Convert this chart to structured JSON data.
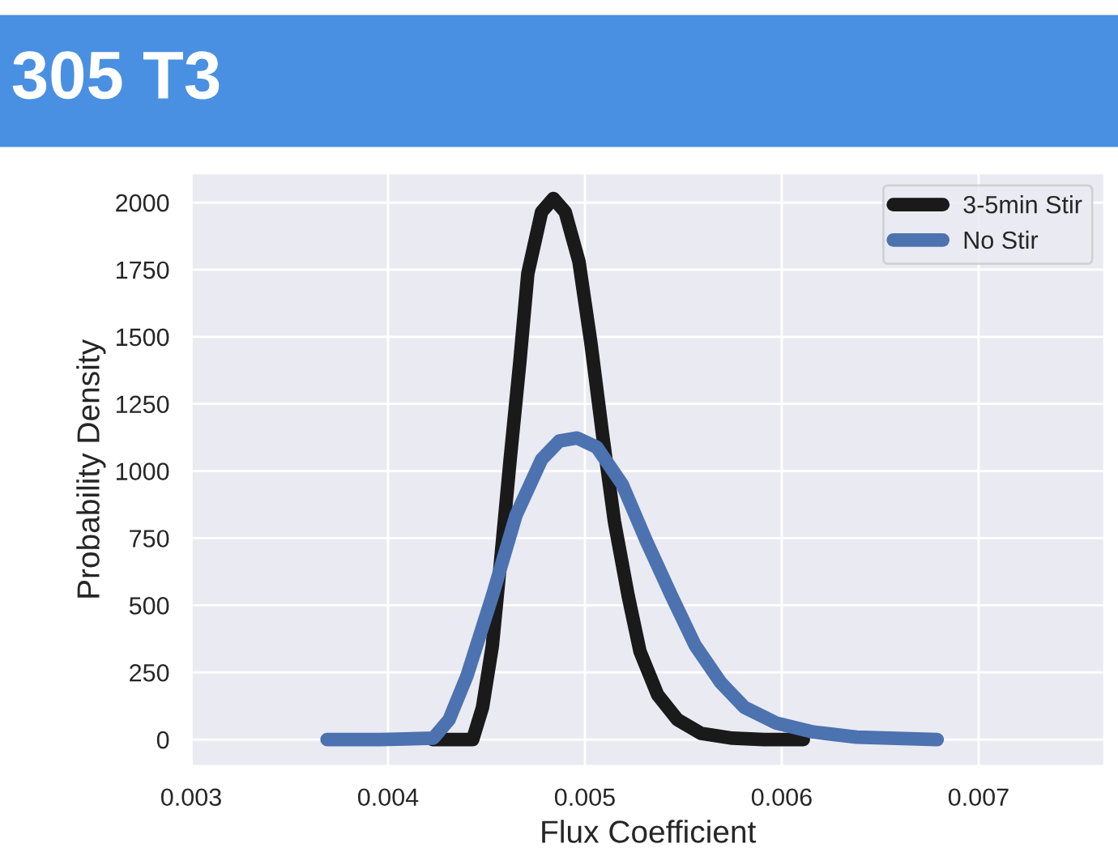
{
  "chart_data": {
    "type": "line",
    "title": "305 T3",
    "xlabel": "Flux Coefficient",
    "ylabel": "Probability Density",
    "xlim": [
      0.003,
      0.00764
    ],
    "ylim": [
      -100,
      2110
    ],
    "xticks": [
      0.003,
      0.004,
      0.005,
      0.006,
      0.007
    ],
    "yticks": [
      0,
      250,
      500,
      750,
      1000,
      1250,
      1500,
      1750,
      2000
    ],
    "grid": true,
    "legend": "top right",
    "marker": "none",
    "line_style": "solid",
    "series": [
      {
        "name": "3-5min Stir",
        "color": "#1a1a1a",
        "x": [
          0.004226,
          0.00443,
          0.00448,
          0.00453,
          0.00457,
          0.00462,
          0.00467,
          0.00471,
          0.00478,
          0.00484,
          0.0049,
          0.00497,
          0.00503,
          0.00509,
          0.00515,
          0.00522,
          0.00528,
          0.00537,
          0.00547,
          0.00559,
          0.00575,
          0.00591,
          0.00611
        ],
        "values": [
          0,
          0,
          120,
          350,
          650,
          1040,
          1410,
          1735,
          1965,
          2015,
          1965,
          1780,
          1480,
          1135,
          812,
          535,
          328,
          166,
          74,
          23,
          5,
          0,
          0
        ]
      },
      {
        "name": "No Stir",
        "color": "#4c72b0",
        "x": [
          0.00369,
          0.00396,
          0.00423,
          0.00431,
          0.0044,
          0.00453,
          0.00465,
          0.00478,
          0.00487,
          0.00496,
          0.00506,
          0.00519,
          0.00531,
          0.00544,
          0.00556,
          0.00569,
          0.00581,
          0.00597,
          0.00616,
          0.00638,
          0.00679
        ],
        "values": [
          0,
          0,
          5,
          74,
          235,
          535,
          835,
          1043,
          1112,
          1123,
          1089,
          950,
          743,
          535,
          351,
          212,
          120,
          62,
          28,
          9,
          0
        ]
      }
    ]
  }
}
